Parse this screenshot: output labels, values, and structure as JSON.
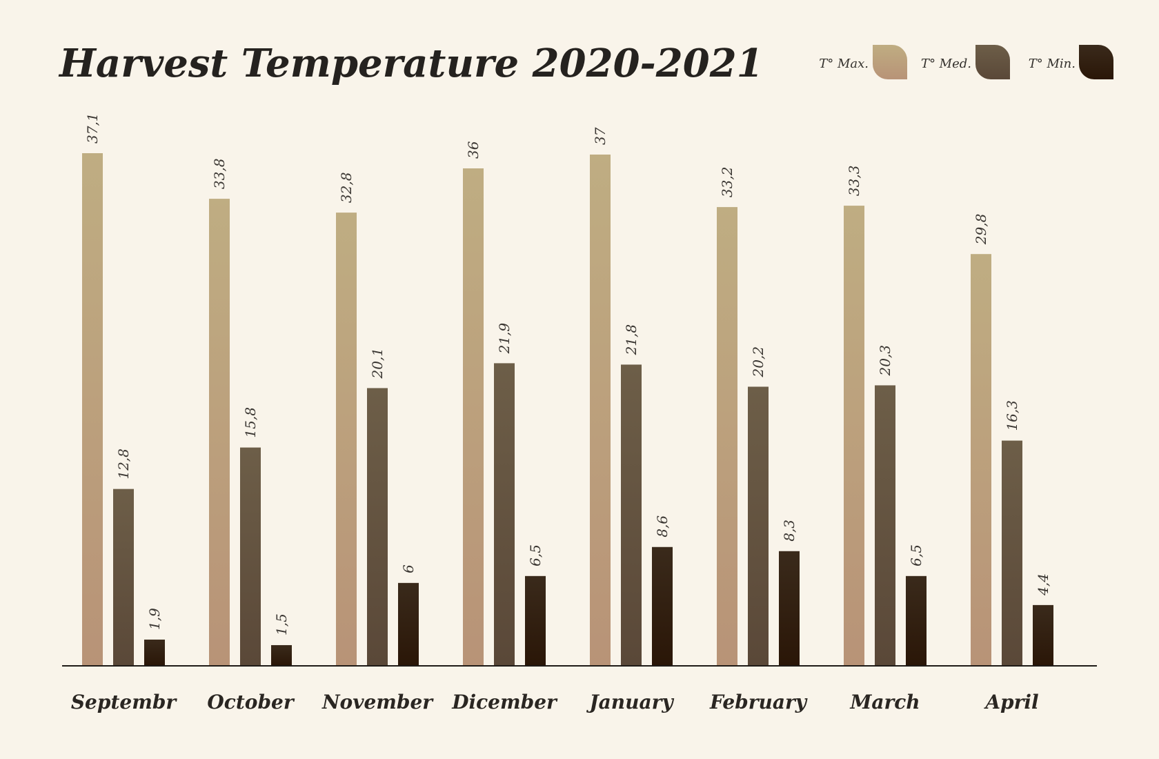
{
  "chart_data": {
    "type": "bar",
    "title": "Harvest Temperature 2020-2021",
    "xlabel": "",
    "ylabel": "",
    "ylim": [
      0,
      37.1
    ],
    "grid": false,
    "legend_position": "top-right",
    "categories": [
      "Septembr",
      "October",
      "November",
      "Dicember",
      "January",
      "February",
      "March",
      "April"
    ],
    "series": [
      {
        "name": "T° Max.",
        "values": [
          37.1,
          33.8,
          32.8,
          36,
          37,
          33.2,
          33.3,
          29.8
        ],
        "labels": [
          "37,1",
          "33,8",
          "32,8",
          "36",
          "37",
          "33,2",
          "33,3",
          "29,8"
        ],
        "color_top": "#bfad82",
        "color_bottom": "#b89377"
      },
      {
        "name": "T° Med.",
        "values": [
          12.8,
          15.8,
          20.1,
          21.9,
          21.8,
          20.2,
          20.3,
          16.3
        ],
        "labels": [
          "12,8",
          "15,8",
          "20,1",
          "21,9",
          "21,8",
          "20,2",
          "20,3",
          "16,3"
        ],
        "color_top": "#6d5e48",
        "color_bottom": "#5a4838"
      },
      {
        "name": "T° Min.",
        "values": [
          1.9,
          1.5,
          6,
          6.5,
          8.6,
          8.3,
          6.5,
          4.4
        ],
        "labels": [
          "1,9",
          "1,5",
          "6",
          "6,5",
          "8,6",
          "8,3",
          "6,5",
          "4,4"
        ],
        "color_top": "#3a2a1b",
        "color_bottom": "#2a1607"
      }
    ]
  },
  "colors": {
    "background": "#f9f4ea",
    "baseline": "#1e1a16",
    "title": "#25221f"
  }
}
